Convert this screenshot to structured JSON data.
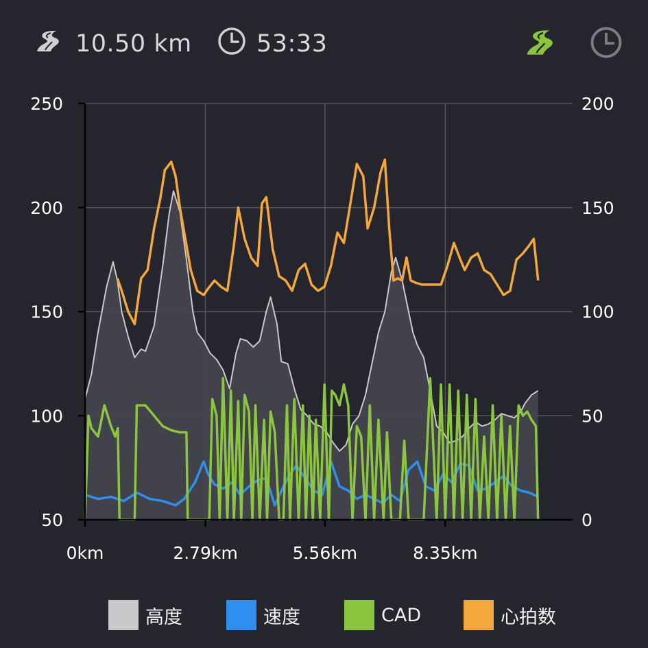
{
  "header": {
    "distance_value": "10.50 km",
    "time_value": "53:33",
    "distance_icon": "road-icon",
    "time_icon": "clock-icon",
    "mode_toggle_distance_icon": "road-icon",
    "mode_toggle_time_icon": "clock-icon",
    "active_mode": "distance",
    "active_color": "#8cc63f",
    "inactive_color": "#7d7d80"
  },
  "legend": {
    "items": [
      {
        "label": "高度",
        "color": "#c9c9cc"
      },
      {
        "label": "速度",
        "color": "#2f8fef"
      },
      {
        "label": "CAD",
        "color": "#8cc63f"
      },
      {
        "label": "心拍数",
        "color": "#f5a73b"
      }
    ]
  },
  "chart_data": {
    "type": "area",
    "x_unit": "km",
    "xlim": [
      0,
      11.3
    ],
    "x_tick_values": [
      0,
      2.79,
      5.56,
      8.35
    ],
    "x_tick_labels": [
      "0km",
      "2.79km",
      "5.56km",
      "8.35km"
    ],
    "y_left": {
      "lim": [
        50,
        250
      ],
      "ticks": [
        50,
        100,
        150,
        200,
        250
      ],
      "tick_labels": [
        "50",
        "100",
        "150",
        "200",
        "250"
      ]
    },
    "y_right": {
      "lim": [
        0,
        200
      ],
      "ticks": [
        0,
        50,
        100,
        150,
        200
      ],
      "tick_labels": [
        "0",
        "50",
        "100",
        "150",
        "200"
      ]
    },
    "grid": true,
    "legend_position": "bottom",
    "series": [
      {
        "name": "高度",
        "axis": "left",
        "style": "area",
        "color": "#c9c9cc",
        "x": [
          0,
          0.15,
          0.3,
          0.5,
          0.65,
          0.75,
          0.85,
          1.0,
          1.15,
          1.3,
          1.4,
          1.6,
          1.8,
          1.95,
          2.05,
          2.2,
          2.35,
          2.5,
          2.6,
          2.75,
          2.9,
          3.05,
          3.2,
          3.35,
          3.5,
          3.6,
          3.75,
          3.9,
          4.05,
          4.2,
          4.3,
          4.45,
          4.55,
          4.7,
          4.85,
          5.0,
          5.15,
          5.3,
          5.45,
          5.6,
          5.75,
          5.9,
          6.05,
          6.2,
          6.35,
          6.5,
          6.65,
          6.8,
          6.95,
          7.1,
          7.2,
          7.35,
          7.5,
          7.6,
          7.7,
          7.85,
          8.0,
          8.15,
          8.3,
          8.45,
          8.6,
          8.75,
          8.9,
          9.05,
          9.2,
          9.35,
          9.5,
          9.65,
          9.8,
          9.95,
          10.1,
          10.2,
          10.35,
          10.5
        ],
        "y": [
          108,
          120,
          140,
          162,
          174,
          165,
          150,
          138,
          128,
          132,
          131,
          143,
          172,
          197,
          208,
          198,
          175,
          150,
          140,
          136,
          130,
          127,
          122,
          113,
          130,
          137,
          136,
          133,
          136,
          150,
          157,
          144,
          126,
          125,
          113,
          103,
          100,
          96,
          95,
          92,
          87,
          83,
          86,
          96,
          100,
          110,
          125,
          140,
          150,
          169,
          176,
          165,
          150,
          140,
          134,
          128,
          112,
          95,
          92,
          87,
          88,
          90,
          94,
          97,
          95,
          96,
          98,
          101,
          100,
          99,
          102,
          106,
          110,
          112
        ]
      },
      {
        "name": "心拍数",
        "axis": "right",
        "style": "line",
        "color": "#f5a73b",
        "x": [
          0.75,
          0.85,
          1.0,
          1.15,
          1.3,
          1.45,
          1.6,
          1.75,
          1.85,
          2.0,
          2.1,
          2.2,
          2.35,
          2.45,
          2.6,
          2.75,
          2.85,
          3.0,
          3.15,
          3.3,
          3.45,
          3.55,
          3.7,
          3.85,
          4.0,
          4.1,
          4.2,
          4.35,
          4.5,
          4.65,
          4.8,
          4.95,
          5.1,
          5.25,
          5.4,
          5.55,
          5.7,
          5.85,
          6.0,
          6.15,
          6.3,
          6.45,
          6.55,
          6.7,
          6.85,
          6.95,
          7.05,
          7.15,
          7.25,
          7.35,
          7.45,
          7.55,
          7.65,
          7.8,
          7.95,
          8.1,
          8.25,
          8.4,
          8.55,
          8.7,
          8.8,
          8.95,
          9.1,
          9.25,
          9.4,
          9.55,
          9.7,
          9.85,
          10.0,
          10.15,
          10.3,
          10.4,
          10.5
        ],
        "y": [
          116,
          110,
          100,
          94,
          116,
          120,
          140,
          155,
          168,
          172,
          165,
          150,
          132,
          120,
          110,
          108,
          111,
          115,
          112,
          110,
          132,
          150,
          135,
          126,
          122,
          152,
          155,
          130,
          117,
          115,
          110,
          120,
          123,
          113,
          110,
          112,
          122,
          138,
          133,
          152,
          171,
          165,
          140,
          150,
          167,
          173,
          140,
          115,
          116,
          115,
          126,
          115,
          114,
          113,
          113,
          113,
          113,
          122,
          133,
          125,
          120,
          126,
          128,
          120,
          118,
          113,
          108,
          110,
          125,
          128,
          132,
          135,
          115
        ]
      },
      {
        "name": "速度",
        "axis": "right",
        "style": "line",
        "color": "#2f8fef",
        "x": [
          0,
          0.3,
          0.6,
          0.9,
          1.2,
          1.5,
          1.8,
          2.1,
          2.3,
          2.55,
          2.75,
          2.85,
          3.0,
          3.2,
          3.4,
          3.6,
          3.8,
          4.0,
          4.2,
          4.4,
          4.6,
          4.75,
          4.9,
          5.1,
          5.3,
          5.5,
          5.7,
          5.9,
          6.1,
          6.3,
          6.5,
          6.7,
          6.9,
          7.1,
          7.3,
          7.5,
          7.7,
          7.9,
          8.1,
          8.3,
          8.5,
          8.7,
          8.9,
          9.1,
          9.3,
          9.5,
          9.7,
          9.9,
          10.1,
          10.3,
          10.5
        ],
        "y": [
          12,
          10,
          11,
          9,
          13,
          10,
          9,
          7,
          10,
          18,
          28,
          22,
          17,
          15,
          18,
          12,
          16,
          19,
          20,
          7,
          16,
          22,
          26,
          20,
          14,
          12,
          28,
          16,
          14,
          10,
          12,
          10,
          8,
          12,
          9,
          24,
          28,
          16,
          14,
          22,
          18,
          27,
          26,
          14,
          15,
          18,
          21,
          16,
          14,
          13,
          11
        ]
      },
      {
        "name": "CAD",
        "axis": "right",
        "style": "line",
        "color": "#8cc63f",
        "x": [
          0,
          0.08,
          0.15,
          0.3,
          0.45,
          0.6,
          0.7,
          0.76,
          0.8,
          0.85,
          1.05,
          1.15,
          1.2,
          1.4,
          1.6,
          1.8,
          2.0,
          2.2,
          2.35,
          2.38,
          2.6,
          2.88,
          2.95,
          3.05,
          3.12,
          3.2,
          3.3,
          3.38,
          3.45,
          3.55,
          3.62,
          3.7,
          3.8,
          3.88,
          3.95,
          4.05,
          4.15,
          4.22,
          4.3,
          4.4,
          4.5,
          4.6,
          4.68,
          4.75,
          4.85,
          4.95,
          5.05,
          5.12,
          5.2,
          5.28,
          5.35,
          5.45,
          5.55,
          5.65,
          5.72,
          5.8,
          5.9,
          6.0,
          6.1,
          6.2,
          6.3,
          6.4,
          6.5,
          6.6,
          6.7,
          6.8,
          6.92,
          7.0,
          7.1,
          7.2,
          7.3,
          7.4,
          7.5,
          7.6,
          7.7,
          7.85,
          8.0,
          8.15,
          8.25,
          8.35,
          8.45,
          8.55,
          8.65,
          8.75,
          8.85,
          8.95,
          9.05,
          9.15,
          9.25,
          9.35,
          9.45,
          9.55,
          9.65,
          9.75,
          9.85,
          9.95,
          10.05,
          10.15,
          10.25,
          10.35,
          10.45,
          10.5
        ],
        "y": [
          0,
          50,
          44,
          40,
          55,
          45,
          40,
          44,
          0,
          0,
          0,
          0,
          55,
          55,
          50,
          45,
          43,
          42,
          42,
          0,
          0,
          0,
          58,
          50,
          0,
          68,
          0,
          62,
          0,
          57,
          0,
          60,
          52,
          0,
          55,
          0,
          48,
          0,
          52,
          42,
          0,
          0,
          55,
          0,
          58,
          0,
          55,
          0,
          50,
          0,
          48,
          0,
          65,
          0,
          62,
          60,
          55,
          65,
          55,
          0,
          45,
          40,
          0,
          55,
          0,
          48,
          0,
          42,
          0,
          0,
          0,
          38,
          0,
          0,
          0,
          0,
          68,
          0,
          65,
          0,
          65,
          0,
          62,
          0,
          60,
          0,
          58,
          0,
          40,
          0,
          55,
          0,
          50,
          0,
          45,
          0,
          55,
          50,
          52,
          48,
          45,
          0
        ]
      }
    ]
  }
}
